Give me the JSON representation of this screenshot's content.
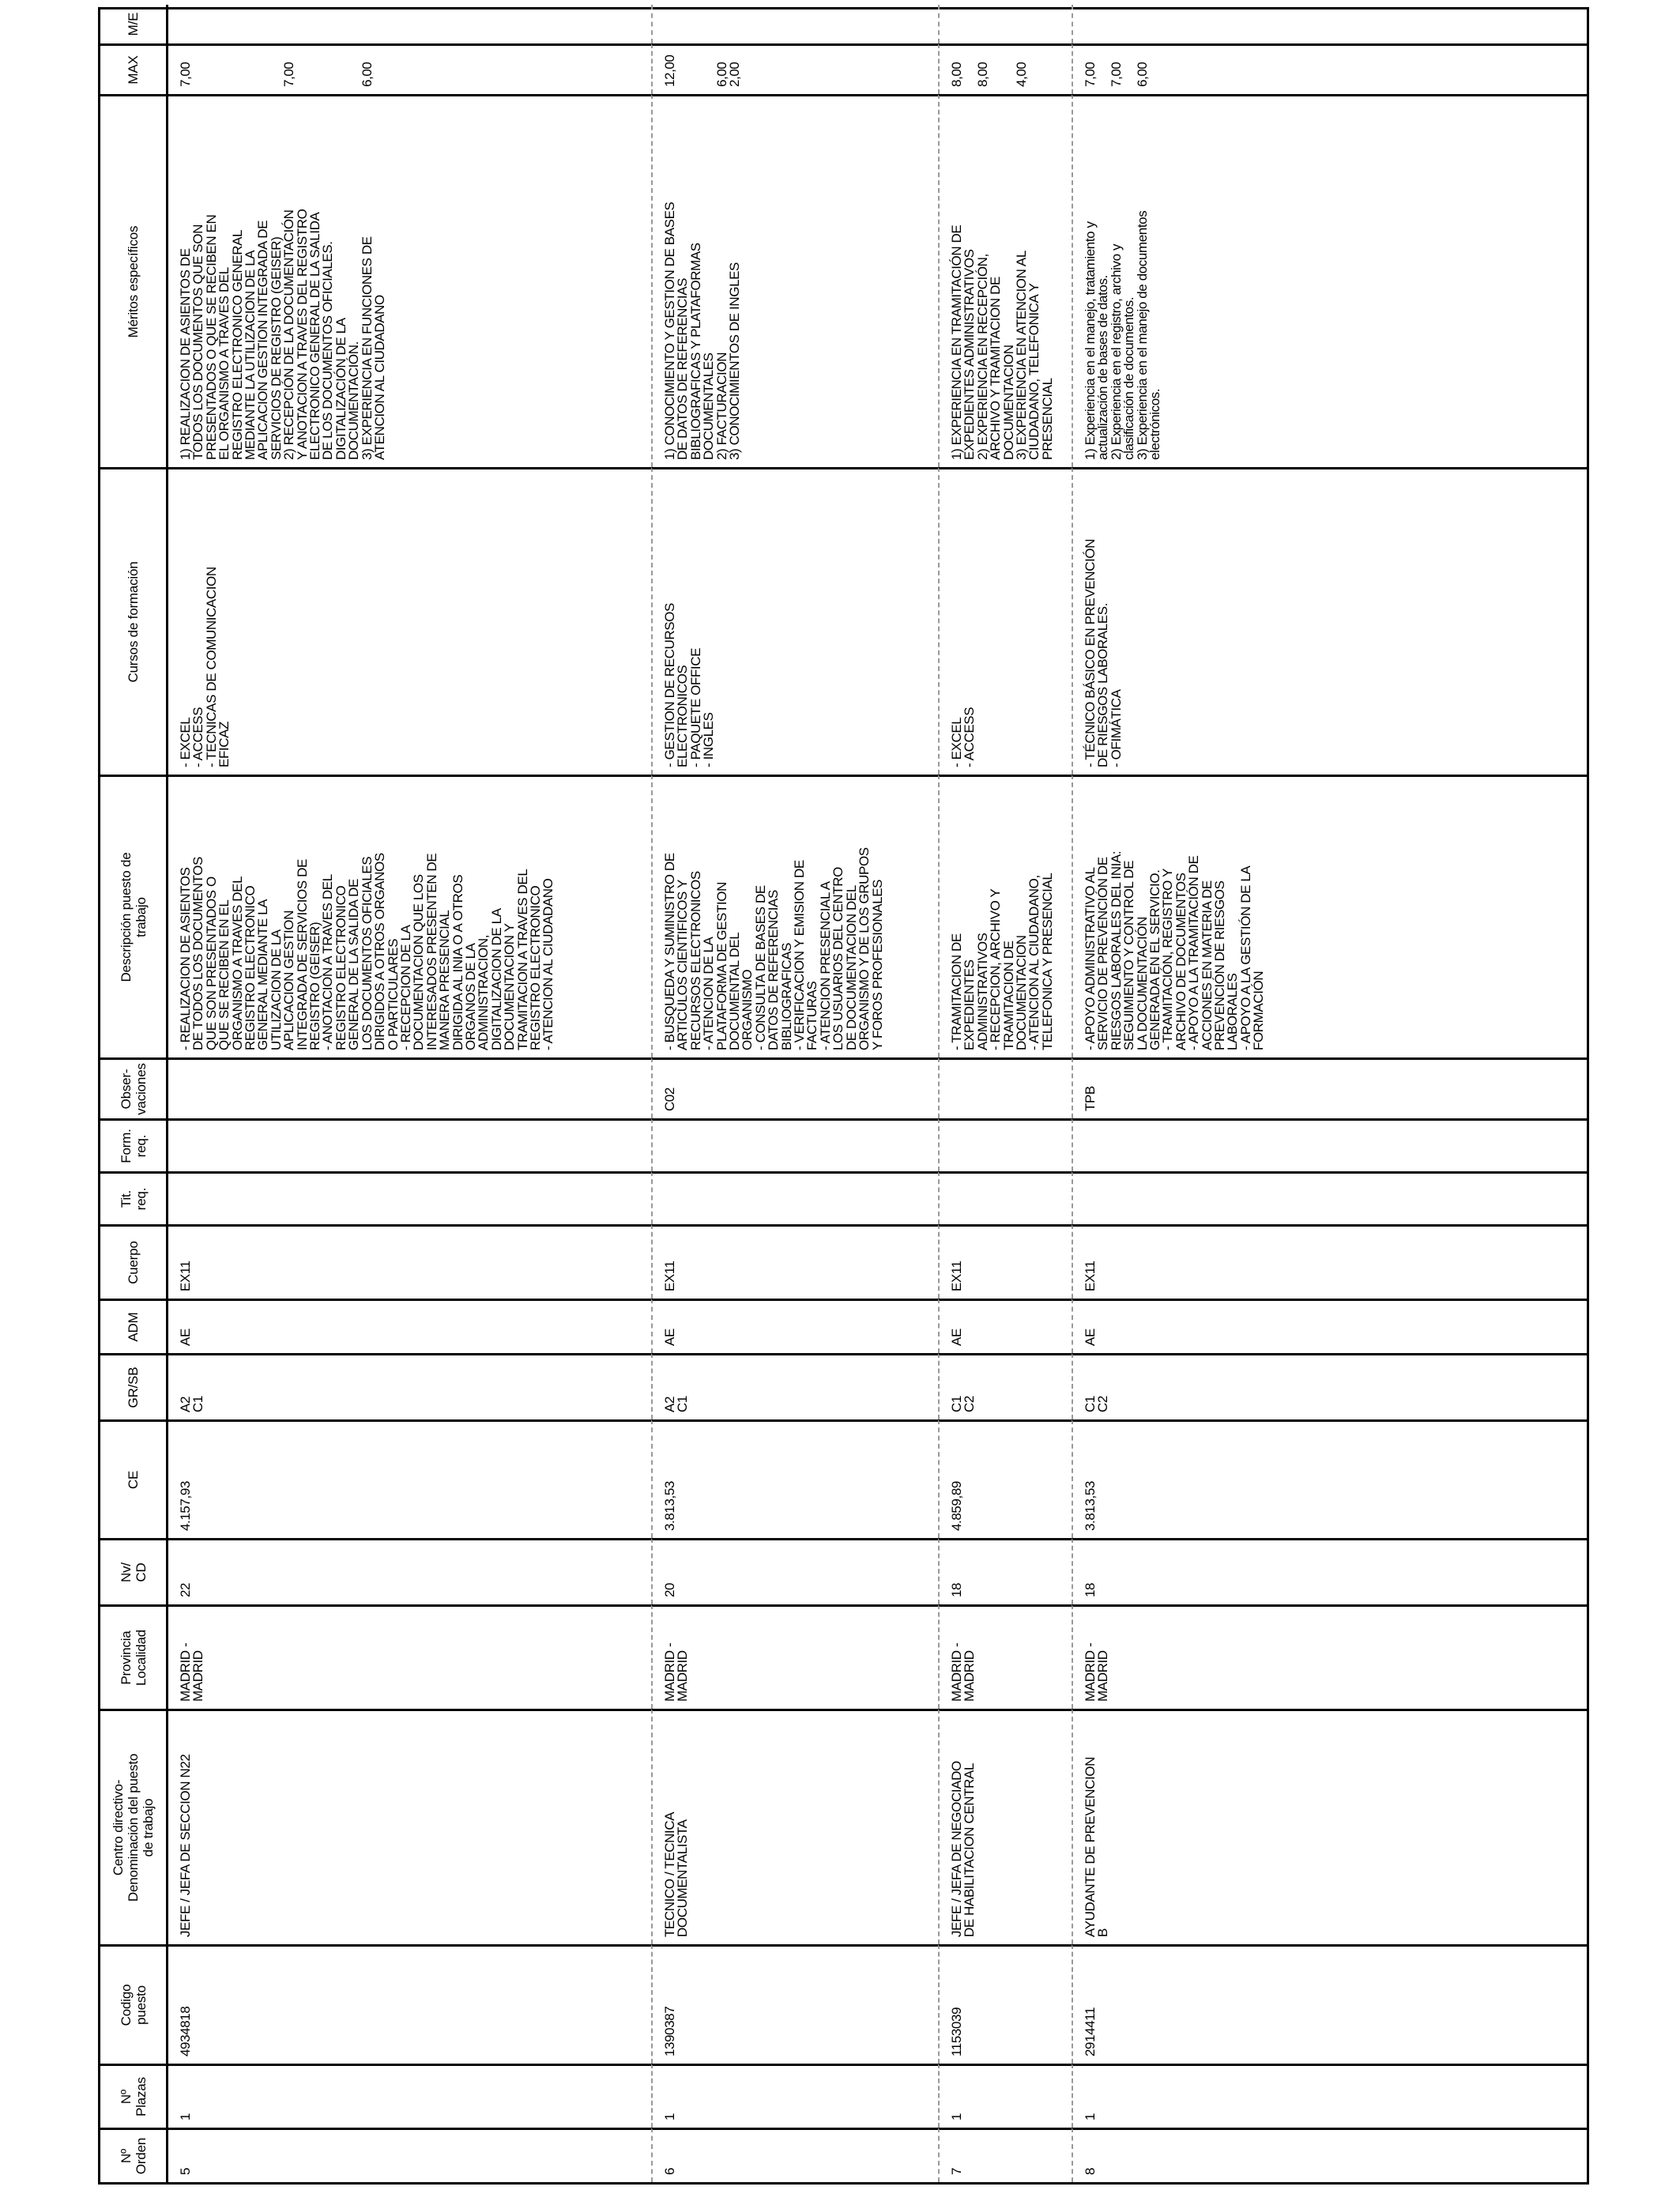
{
  "headers": {
    "orden": "Nº\nOrden",
    "plazas": "Nº\nPlazas",
    "codigo": "Codigo\npuesto",
    "centro": "Centro directivo-\nDenominación del puesto\nde trabajo",
    "provincia": "Provincia\nLocalidad",
    "nivel": "Nv/\nCD",
    "ce": "CE",
    "grupo": "GR/SB",
    "adm": "ADM",
    "cuerpo": "Cuerpo",
    "titulacion": "Tit.\nreq.",
    "formacion": "Form.\nreq.",
    "observaciones": "Obser-\nvaciones",
    "descripcion": "Descripción puesto de\ntrabajo",
    "cursos": "Cursos de formación",
    "meritos": "Méritos específicos",
    "max": "MAX",
    "me": "M/E"
  },
  "rows": [
    {
      "orden": "5",
      "plazas": "1",
      "codigo": "4934818",
      "centro": "JEFE / JEFA DE SECCION N22",
      "provincia": "MADRID -\nMADRID",
      "nivel": "22",
      "ce": "4.157,93",
      "grupo": "A2\nC1",
      "adm": "AE",
      "cuerpo": "EX11",
      "titulacion": "",
      "formacion": "",
      "observaciones": "",
      "descripcion": "- REALIZACION DE ASIENTOS\nDE TODOS LOS DOCUMENTOS\nQUE SON PRESENTADOS O\nQUE SE RECIBEN EN EL\nORGANISMO  A TRAVES DEL\nREGISTRO ELECTRONICO\nGENERAL MEDIANTE LA\nUTILIZACION DE LA\nAPLICACION GESTION\nINTEGRADA DE SERVICIOS DE\nREGISTRO (GEISER)\n- ANOTACION A TRAVES DEL\nREGISTRO ELECTRONICO\nGENERAL DE LA SALIDA DE\nLOS DOCUMENTOS OFICIALES\nDIRIGIDOS A OTROS ORGANOS\nO PARTICULARES\n- RECEPCION DE LA\nDOCUMENTACION QUE LOS\nINTERESADOS PRESENTEN DE\nMANERA PRESENCIAL\nDIRIGIDA AL INIA O A OTROS\nORGANOS DE LA\nADMINISTRACION,\nDIGITALIZACION DE LA\nDOCUMENTACION Y\nTRAMITACION A TRAVES DEL\nREGISTRO ELECTRONICO\n- ATENCION AL CIUDADANO",
      "cursos": "- EXCEL\n- ACCESS\n- TECNICAS DE COMUNICACION\nEFICAZ",
      "meritos": "1) REALIZACION DE ASIENTOS DE\nTODOS LOS DOCUMENTOS QUE SON\nPRESENTADOS O QUE SE RECIBEN EN\nEL ORGANISMO  A TRAVES DEL\nREGISTRO ELECTRONICO GENERAL\nMEDIANTE LA UTILIZACION DE LA\nAPLICACION GESTION INTEGRADA DE\nSERVICIOS DE REGISTRO (GEISER)\n2) RECEPCIÓN DE LA DOCUMENTACIÓN\nY ANOTACION A TRAVES DEL REGISTRO\nELECTRONICO GENERAL DE LA SALIDA\nDE LOS DOCUMENTOS OFICIALES.\nDIGITALIZACIÓN DE LA\nDOCUMENTACIÓN.\n3) EXPERIENCIA EN FUNCIONES DE\nATENCION AL CIUDADANO",
      "max": "7,00\n\n\n\n\n\n\n\n7,00\n\n\n\n\n\n6,00",
      "me": ""
    },
    {
      "orden": "6",
      "plazas": "1",
      "codigo": "1390387",
      "centro": "TECNICO / TECNICA\nDOCUMENTALISTA",
      "provincia": "MADRID -\nMADRID",
      "nivel": "20",
      "ce": "3.813,53",
      "grupo": "A2\nC1",
      "adm": "AE",
      "cuerpo": "EX11",
      "titulacion": "",
      "formacion": "",
      "observaciones": "C02",
      "descripcion": "- BUSQUEDA Y SUMINISTRO DE\nARTICULOS CIENTIFICOS Y\nRECURSOS ELECTRONICOS\n- ATENCION DE LA\nPLATAFORMA DE GESTION\nDOCUMENTAL DEL\nORGANISMO\n- CONSULTA DE BASES DE\nDATOS DE REFERENCIAS\nBIBLIOGRAFICAS\n- VERIFICACION Y EMISION DE\nFACTURAS\n- ATENCION PRESENCIAL A\nLOS USUARIOS DEL CENTRO\nDE DOCUMENTACION DEL\nORGANISMO Y DE LOS GRUPOS\nY FOROS PROFESIONALES",
      "cursos": "- GESTION DE RECURSOS\nELECTRONICOS\n- PAQUETE OFFICE\n- INGLES",
      "meritos": "1) CONOCIMIENTO Y GESTION DE BASES\nDE DATOS DE REFERENCIAS\nBIBLIOGRAFICAS Y PLATAFORMAS\nDOCUMENTALES\n2) FACTURACION\n3) CONOCIMIENTOS DE INGLES",
      "max": "12,00\n\n\n\n6,00\n2,00",
      "me": ""
    },
    {
      "orden": "7",
      "plazas": "1",
      "codigo": "1153039",
      "centro": "JEFE / JEFA DE NEGOCIADO\nDE HABILITACION CENTRAL",
      "provincia": "MADRID -\nMADRID",
      "nivel": "18",
      "ce": "4.859,89",
      "grupo": "C1\nC2",
      "adm": "AE",
      "cuerpo": "EX11",
      "titulacion": "",
      "formacion": "",
      "observaciones": "",
      "descripcion": "- TRAMITACION DE\nEXPEDIENTES\nADMINISTRATIVOS\n- RECEPCION, ARCHIVO Y\nTRAMITACION DE\nDOCUMENTACION\n- ATENCION AL CIUDADANO,\nTELEFONICA Y PRESENCIAL",
      "cursos": "- EXCEL\n- ACCESS",
      "meritos": "1) EXPERIENCIA EN TRAMITACIÓN DE\nEXPEDIENTES ADMINISTRATIVOS\n2) EXPERIENCIA EN RECEPCIÓN,\nARCHIVO Y TRAMITACION DE\nDOCUMENTACION\n3) EXPERIENCIA EN ATENCION AL\nCIUDADANO, TELEFONICA Y\nPRESENCIAL",
      "max": "8,00\n\n8,00\n\n\n4,00",
      "me": ""
    },
    {
      "orden": "8",
      "plazas": "1",
      "codigo": "2914411",
      "centro": "AYUDANTE DE PREVENCION\nB",
      "provincia": "MADRID -\nMADRID",
      "nivel": "18",
      "ce": "3.813,53",
      "grupo": "C1\nC2",
      "adm": "AE",
      "cuerpo": "EX11",
      "titulacion": "",
      "formacion": "",
      "observaciones": "TPB",
      "descripcion": "- APOYO ADMINISTRATIVO AL\nSERVICIO DE PREVENCIÓN DE\nRIESGOS LABORALES DEL INIA:\nSEGUIMIENTO Y CONTROL DE\nLA DOCUMENTACIÓN\nGENERADA EN EL SERVICIO.\n- TRAMITACIÓN, REGISTRO Y\nARCHIVO DE DOCUMENTOS\n- APOYO A LA TRAMITACIÓN DE\nACCIONES EN MATERIA DE\nPREVENCIÓN DE RIESGOS\nLABORALES\n- APOYO A LA GESTIÓN DE LA\nFORMACIÓN",
      "cursos": "- TÉCNICO BÁSICO EN PREVENCIÓN\nDE RIESGOS LABORALES.\n- OFIMÁTICA",
      "meritos": "1) Experiencia en el manejo, tratamiento y\nactualización de bases de datos.\n2) Experiencia en el registro, archivo y\nclasificación de documentos.\n3) Experiencia en el manejo de documentos\nelectrónicos.",
      "max": "7,00\n\n7,00\n\n6,00",
      "me": ""
    }
  ]
}
